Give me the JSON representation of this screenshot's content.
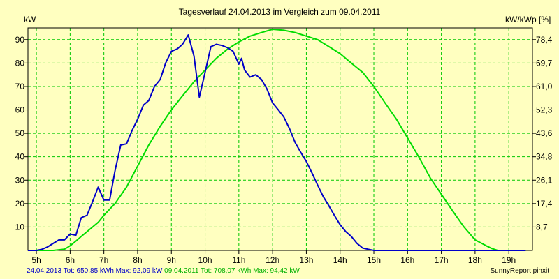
{
  "chart_data": {
    "type": "line",
    "title": "Tagesverlauf 24.04.2013 im Vergleich zum 09.04.2011",
    "ylabel": "kW",
    "ylabel_right": "kW/kWp [%]",
    "ylim": [
      0,
      95
    ],
    "xlim": [
      4.75,
      19.7
    ],
    "x_tick_labels": [
      "5h",
      "6h",
      "7h",
      "8h",
      "9h",
      "10h",
      "11h",
      "12h",
      "13h",
      "14h",
      "15h",
      "16h",
      "17h",
      "18h",
      "19h"
    ],
    "y_ticks": [
      10,
      20,
      30,
      40,
      50,
      60,
      70,
      80,
      90
    ],
    "y_right_tick_labels": [
      "8,7",
      "17,4",
      "26,1",
      "34,8",
      "43,6",
      "52,3",
      "61,0",
      "69,7",
      "78,4"
    ],
    "grid": true,
    "series": [
      {
        "name": "24.04.2013",
        "color": "#0000c8",
        "x": [
          4.75,
          5.0,
          5.17,
          5.33,
          5.5,
          5.67,
          5.83,
          6.0,
          6.17,
          6.33,
          6.5,
          6.67,
          6.83,
          7.0,
          7.17,
          7.33,
          7.5,
          7.67,
          7.83,
          8.0,
          8.17,
          8.33,
          8.5,
          8.67,
          8.83,
          9.0,
          9.17,
          9.33,
          9.5,
          9.67,
          9.83,
          10.0,
          10.17,
          10.33,
          10.5,
          10.67,
          10.83,
          11.0,
          11.08,
          11.17,
          11.33,
          11.5,
          11.67,
          11.83,
          12.0,
          12.17,
          12.33,
          12.5,
          12.67,
          12.83,
          13.0,
          13.17,
          13.33,
          13.5,
          13.67,
          13.83,
          14.0,
          14.17,
          14.33,
          14.5,
          14.67,
          14.83,
          15.0,
          15.17,
          15.33,
          15.5,
          15.67,
          15.83,
          16.0,
          16.17,
          16.33,
          16.5,
          16.67,
          16.83,
          17.0,
          17.17,
          17.33,
          17.5,
          17.67,
          17.83,
          18.0,
          18.17,
          18.33,
          18.5,
          18.67,
          18.83,
          19.0,
          19.17,
          19.33,
          19.5
        ],
        "values": [
          0,
          0,
          0.5,
          1.5,
          3,
          4.5,
          4.5,
          7,
          6.5,
          14,
          15,
          21,
          27,
          21.5,
          21.5,
          34,
          45,
          45.5,
          51,
          56,
          62,
          64,
          70,
          73,
          80,
          85,
          86,
          88,
          92,
          83,
          65.5,
          76,
          87,
          88,
          87.5,
          86.5,
          85,
          79.5,
          82,
          77,
          74,
          75,
          73,
          69,
          63,
          60,
          57,
          52,
          46,
          42,
          38,
          33,
          28,
          23,
          19,
          15,
          11,
          8,
          6,
          3,
          1,
          0.5,
          0,
          0,
          0,
          0,
          0,
          0,
          0,
          0,
          0,
          0,
          0,
          0,
          0,
          0,
          0,
          0,
          0,
          0,
          0,
          0,
          0,
          0,
          0,
          0,
          0,
          0,
          0,
          0
        ]
      },
      {
        "name": "09.04.2011",
        "color": "#00dc00",
        "x": [
          4.75,
          5.5,
          5.83,
          6.0,
          6.17,
          6.33,
          6.5,
          6.83,
          7.0,
          7.33,
          7.67,
          8.0,
          8.33,
          8.67,
          9.0,
          9.33,
          9.67,
          10.0,
          10.33,
          10.67,
          11.0,
          11.33,
          11.67,
          12.0,
          12.33,
          12.67,
          13.0,
          13.33,
          13.67,
          14.0,
          14.33,
          14.67,
          15.0,
          15.33,
          15.67,
          16.0,
          16.33,
          16.67,
          17.0,
          17.33,
          17.67,
          18.0,
          18.33,
          18.5,
          18.67,
          19.0,
          19.33,
          19.5
        ],
        "values": [
          0,
          0,
          0.5,
          2,
          4,
          6,
          8,
          12,
          15,
          20,
          27,
          36,
          45,
          53,
          60,
          66,
          72,
          77,
          82,
          86,
          89,
          91.5,
          93,
          94.4,
          94,
          93,
          91.5,
          90,
          87,
          84,
          80,
          76,
          70,
          63,
          56,
          48,
          40,
          31,
          24,
          17,
          10,
          4.5,
          2,
          0.8,
          0,
          0,
          0,
          0
        ]
      }
    ]
  },
  "footer": {
    "series1_text": "24.04.2013 Tot: 650,85 kWh Max: 92,09 kW",
    "series2_text": "09.04.2011 Tot: 708,07 kWh Max: 94,42 kW",
    "credit": "SunnyReport pinxit"
  }
}
